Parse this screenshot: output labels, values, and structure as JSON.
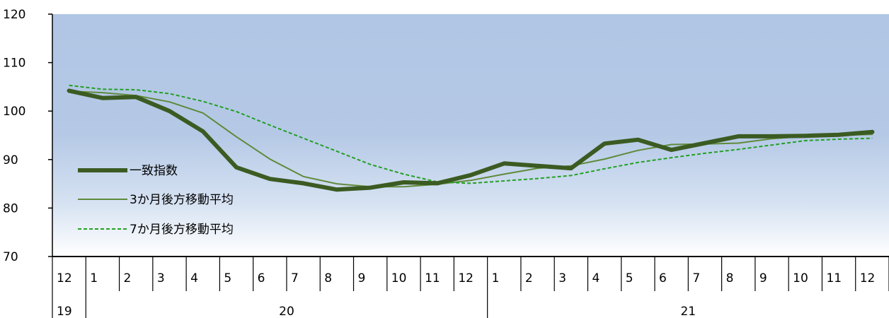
{
  "chart_data": {
    "type": "line",
    "title": "",
    "ylim": [
      70,
      120
    ],
    "y_ticks": [
      "70",
      "80",
      "90",
      "100",
      "110",
      "120"
    ],
    "months": [
      "12",
      "1",
      "2",
      "3",
      "4",
      "5",
      "6",
      "7",
      "8",
      "9",
      "10",
      "11",
      "12",
      "1",
      "2",
      "3",
      "4",
      "5",
      "6",
      "7",
      "8",
      "9",
      "10",
      "11",
      "12"
    ],
    "years": [
      {
        "label": "19",
        "from": 0,
        "to": 0
      },
      {
        "label": "20",
        "from": 1,
        "to": 12
      },
      {
        "label": "21",
        "from": 13,
        "to": 24
      }
    ],
    "series": [
      {
        "name": "一致指数",
        "color": "#3b5b22",
        "style": "thick",
        "values": [
          104.2,
          102.7,
          102.9,
          100.0,
          95.8,
          88.4,
          86.0,
          85.1,
          83.8,
          84.2,
          85.3,
          85.1,
          86.8,
          89.2,
          88.7,
          88.2,
          93.3,
          94.1,
          92.0,
          93.4,
          94.8,
          94.8,
          94.9,
          95.1,
          95.7
        ]
      },
      {
        "name": "3か月後方移動平均",
        "color": "#5f8a3a",
        "style": "thin",
        "values": [
          104.1,
          103.8,
          103.2,
          101.9,
          99.6,
          94.7,
          90.1,
          86.5,
          85.0,
          84.4,
          84.4,
          84.9,
          85.7,
          87.0,
          88.2,
          88.7,
          90.1,
          91.9,
          93.1,
          93.2,
          93.4,
          94.3,
          94.8,
          95.0,
          95.2
        ]
      },
      {
        "name": "7か月後方移動平均",
        "color": "#22a022",
        "style": "dashed",
        "values": [
          105.3,
          104.5,
          104.4,
          103.6,
          102.0,
          99.9,
          97.1,
          94.4,
          91.7,
          89.0,
          87.0,
          85.4,
          85.1,
          85.6,
          86.1,
          86.7,
          88.1,
          89.4,
          90.4,
          91.3,
          92.1,
          93.0,
          93.9,
          94.2,
          94.4
        ]
      }
    ]
  }
}
